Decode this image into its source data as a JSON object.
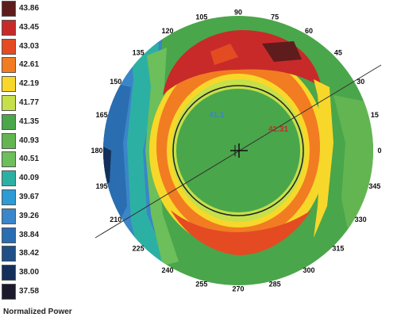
{
  "scale": {
    "title": "Normalized Power",
    "levels": [
      {
        "value": "43.86",
        "color": "#5e1c1c"
      },
      {
        "value": "43.45",
        "color": "#c82a2a"
      },
      {
        "value": "43.03",
        "color": "#e44b23"
      },
      {
        "value": "42.61",
        "color": "#f27c22"
      },
      {
        "value": "42.19",
        "color": "#f7d82a"
      },
      {
        "value": "41.77",
        "color": "#c5e04a"
      },
      {
        "value": "41.35",
        "color": "#4aa64a"
      },
      {
        "value": "40.93",
        "color": "#63b552"
      },
      {
        "value": "40.51",
        "color": "#6cbf5b"
      },
      {
        "value": "40.09",
        "color": "#2db0a4"
      },
      {
        "value": "39.67",
        "color": "#2d9bd4"
      },
      {
        "value": "39.26",
        "color": "#3a86c8"
      },
      {
        "value": "38.84",
        "color": "#2a6db1"
      },
      {
        "value": "38.42",
        "color": "#1f4f86"
      },
      {
        "value": "38.00",
        "color": "#14305a"
      },
      {
        "value": "37.58",
        "color": "#1a1a2a"
      }
    ]
  },
  "map": {
    "center_readout_flat": "41.1",
    "center_readout_steep": "41.31",
    "flat_color": "#3a86c8",
    "steep_color": "#c82a2a",
    "angles": [
      "90",
      "105",
      "120",
      "135",
      "150",
      "165",
      "180",
      "195",
      "210",
      "225",
      "240",
      "255",
      "270",
      "285",
      "300",
      "315",
      "330",
      "345",
      "0",
      "15",
      "30",
      "45",
      "60",
      "75"
    ]
  }
}
